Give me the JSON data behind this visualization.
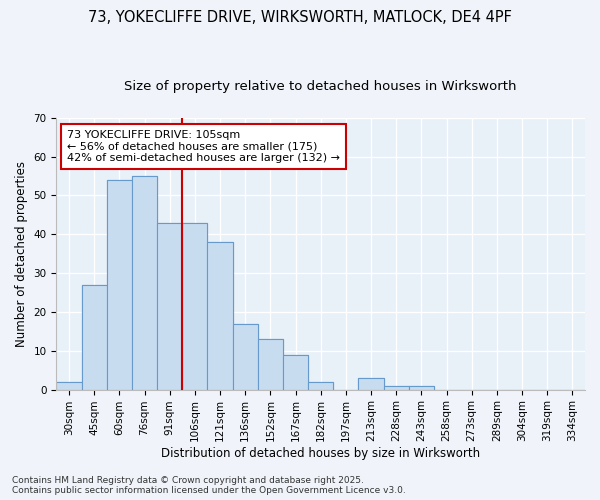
{
  "title_line1": "73, YOKECLIFFE DRIVE, WIRKSWORTH, MATLOCK, DE4 4PF",
  "title_line2": "Size of property relative to detached houses in Wirksworth",
  "xlabel": "Distribution of detached houses by size in Wirksworth",
  "ylabel": "Number of detached properties",
  "categories": [
    "30sqm",
    "45sqm",
    "60sqm",
    "76sqm",
    "91sqm",
    "106sqm",
    "121sqm",
    "136sqm",
    "152sqm",
    "167sqm",
    "182sqm",
    "197sqm",
    "213sqm",
    "228sqm",
    "243sqm",
    "258sqm",
    "273sqm",
    "289sqm",
    "304sqm",
    "319sqm",
    "334sqm"
  ],
  "values": [
    2,
    27,
    54,
    55,
    43,
    43,
    38,
    17,
    13,
    9,
    2,
    0,
    3,
    1,
    1,
    0,
    0,
    0,
    0,
    0,
    0
  ],
  "bar_color": "#c8dcf0",
  "bar_edge_color": "#6699cc",
  "vline_color": "#cc0000",
  "annotation_text": "73 YOKECLIFFE DRIVE: 105sqm\n← 56% of detached houses are smaller (175)\n42% of semi-detached houses are larger (132) →",
  "annotation_box_color": "#cc0000",
  "annotation_bg_color": "#ffffff",
  "ylim": [
    0,
    70
  ],
  "yticks": [
    0,
    10,
    20,
    30,
    40,
    50,
    60,
    70
  ],
  "footnote": "Contains HM Land Registry data © Crown copyright and database right 2025.\nContains public sector information licensed under the Open Government Licence v3.0.",
  "bg_color": "#e8f0f8",
  "fig_bg_color": "#f0f4fa",
  "grid_color": "#ffffff",
  "title_fontsize": 10.5,
  "subtitle_fontsize": 9.5,
  "axis_label_fontsize": 8.5,
  "tick_fontsize": 7.5,
  "annotation_fontsize": 8,
  "footnote_fontsize": 6.5
}
